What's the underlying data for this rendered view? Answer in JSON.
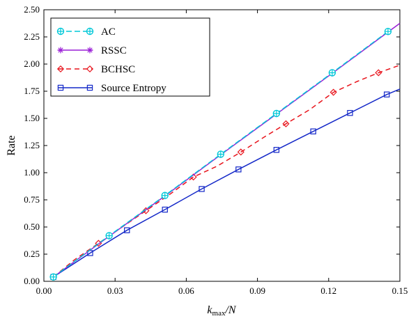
{
  "chart_data": {
    "type": "line",
    "title": "",
    "xlabel_main": "k",
    "xlabel_sub": "max",
    "xlabel_rest": "/N",
    "ylabel": "Rate",
    "xlim": [
      0.0,
      0.15
    ],
    "ylim": [
      0.0,
      2.5
    ],
    "xticks": [
      0.0,
      0.03,
      0.06,
      0.09,
      0.12,
      0.15
    ],
    "xtick_labels": [
      "0.00",
      "0.03",
      "0.06",
      "0.09",
      "0.12",
      "0.15"
    ],
    "yticks": [
      0.0,
      0.25,
      0.5,
      0.75,
      1.0,
      1.25,
      1.5,
      1.75,
      2.0,
      2.25,
      2.5
    ],
    "ytick_labels": [
      "0.00",
      "0.25",
      "0.50",
      "0.75",
      "1.00",
      "1.25",
      "1.50",
      "1.75",
      "2.00",
      "2.25",
      "2.50"
    ],
    "grid": false,
    "legend_position": "top-left",
    "series": [
      {
        "name": "AC",
        "color": "#00c8d8",
        "dash": "8,4",
        "marker": "circle-plus",
        "x": [
          0.004,
          0.0275,
          0.051,
          0.0745,
          0.098,
          0.1215,
          0.145
        ],
        "y": [
          0.04,
          0.42,
          0.79,
          1.17,
          1.545,
          1.92,
          2.3
        ],
        "markers": [
          0.004,
          0.0275,
          0.051,
          0.0745,
          0.098,
          0.1215,
          0.145
        ]
      },
      {
        "name": "RSSC",
        "color": "#9a1fd6",
        "dash": "",
        "marker": "star",
        "x": [
          0.004,
          0.0275,
          0.051,
          0.0745,
          0.098,
          0.1215,
          0.145,
          0.15
        ],
        "y": [
          0.04,
          0.415,
          0.785,
          1.165,
          1.54,
          1.915,
          2.295,
          2.375
        ],
        "markers": [
          0.004,
          0.0275,
          0.051,
          0.0745,
          0.098,
          0.1215,
          0.145
        ]
      },
      {
        "name": "BCHSC",
        "color": "#e8141c",
        "dash": "7,5",
        "marker": "diamond",
        "x": [
          0.004,
          0.013,
          0.023,
          0.033,
          0.043,
          0.053,
          0.063,
          0.073,
          0.083,
          0.093,
          0.102,
          0.112,
          0.122,
          0.132,
          0.141,
          0.15
        ],
        "y": [
          0.04,
          0.2,
          0.35,
          0.5,
          0.65,
          0.8,
          0.96,
          1.06,
          1.19,
          1.33,
          1.45,
          1.58,
          1.74,
          1.84,
          1.92,
          1.99
        ],
        "markers": [
          0.004,
          0.023,
          0.043,
          0.063,
          0.083,
          0.102,
          0.122,
          0.141
        ]
      },
      {
        "name": "Source Entropy",
        "color": "#1428c8",
        "dash": "",
        "marker": "square",
        "x": [
          0.004,
          0.0195,
          0.035,
          0.051,
          0.0665,
          0.082,
          0.098,
          0.1135,
          0.129,
          0.1445,
          0.15
        ],
        "y": [
          0.04,
          0.26,
          0.47,
          0.66,
          0.85,
          1.03,
          1.21,
          1.38,
          1.55,
          1.72,
          1.77
        ],
        "markers": [
          0.004,
          0.0195,
          0.035,
          0.051,
          0.0665,
          0.082,
          0.098,
          0.1135,
          0.129,
          0.1445
        ]
      }
    ]
  }
}
